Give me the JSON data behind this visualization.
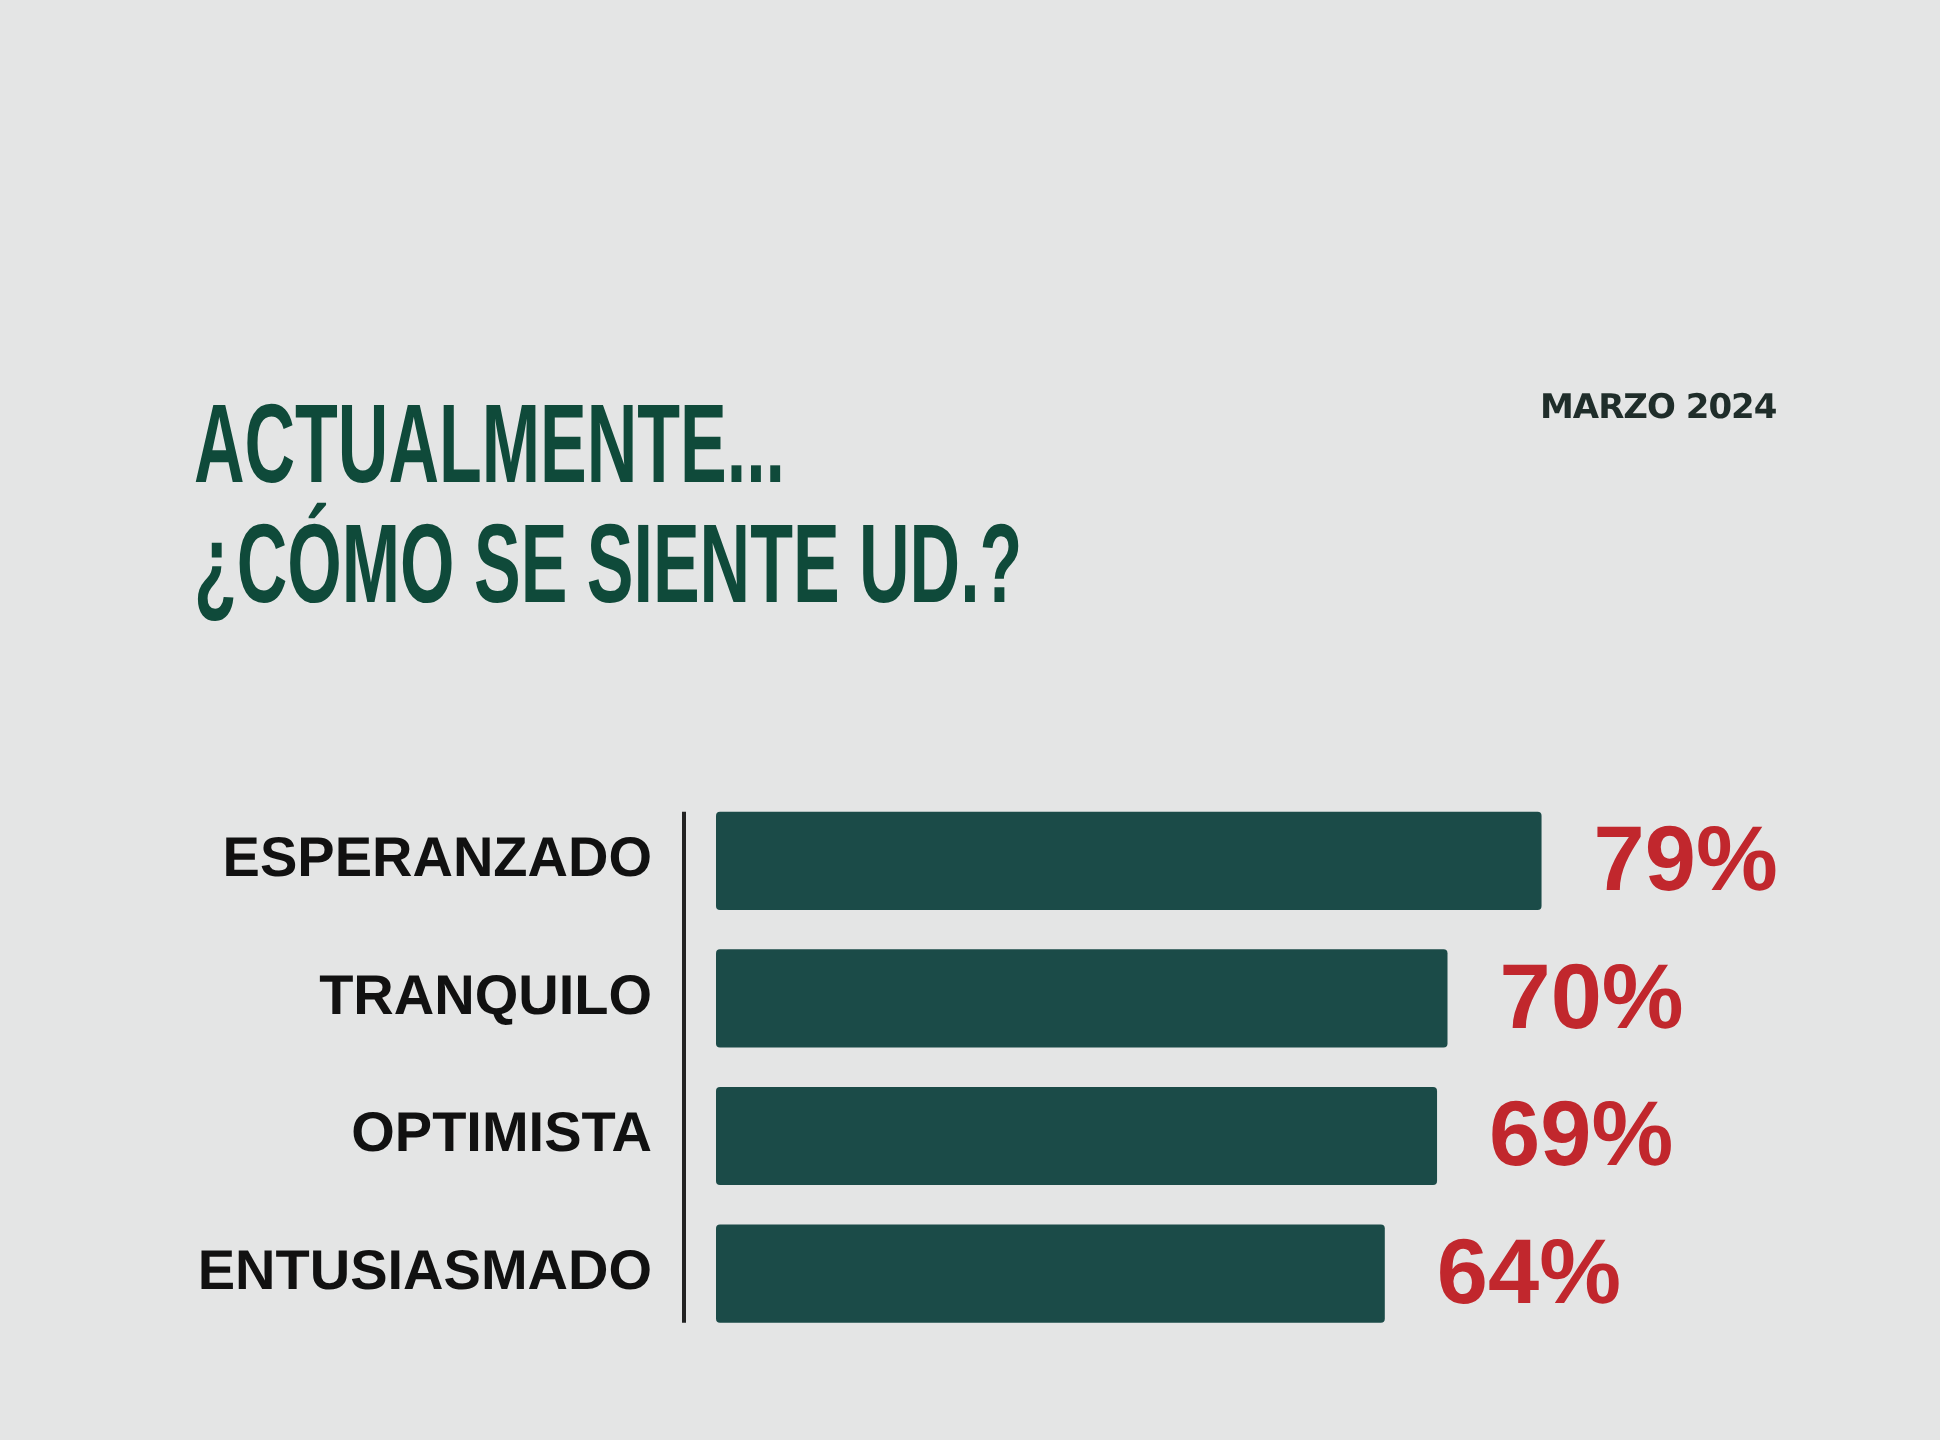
{
  "chart_data": {
    "type": "bar",
    "orientation": "horizontal",
    "title": "ACTUALMENTE...\n¿CÓMO SE SIENTE UD.?",
    "categories": [
      "ESPERANZADO",
      "TRANQUILO",
      "OPTIMISTA",
      "ENTUSIASMADO"
    ],
    "values": [
      79,
      70,
      69,
      64
    ],
    "color": "#1b4b48",
    "value_labels": [
      "79%",
      "70%",
      "69%",
      "64%"
    ],
    "tick_labels": "y",
    "annotations": [
      "MARZO 2024"
    ]
  }
}
